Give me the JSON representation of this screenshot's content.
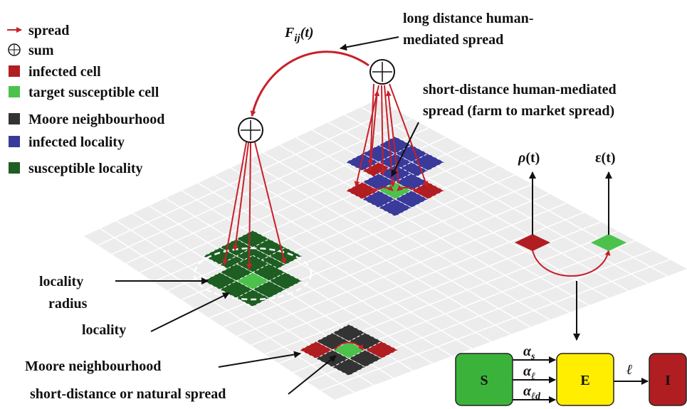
{
  "legend": [
    "spread",
    "sum",
    "infected cell",
    "target susceptible cell",
    "Moore neighbourhood",
    "infected locality",
    "susceptible locality"
  ],
  "labels": {
    "flow": {
      "symbol": "F",
      "sub": "ij",
      "arg": "(t)"
    },
    "long_distance": [
      "long distance human-",
      "mediated spread"
    ],
    "short_distance_human": [
      "short-distance human-mediated",
      "spread (farm to market spread)"
    ],
    "rho": {
      "symbol": "ρ",
      "arg": "(t)"
    },
    "epsilon": {
      "symbol": "ε",
      "arg": "(t)"
    },
    "locality_radius": [
      "locality",
      "radius"
    ],
    "locality": "locality",
    "moore": "Moore neighbourhood",
    "natural": "short-distance or natural spread"
  },
  "compartments": [
    "S",
    "E",
    "I"
  ],
  "rates": [
    {
      "symbol": "α",
      "sub": "s"
    },
    {
      "symbol": "α",
      "sub": "ℓ"
    },
    {
      "symbol": "α",
      "sub": "ℓd"
    }
  ],
  "transition": "ℓ"
}
